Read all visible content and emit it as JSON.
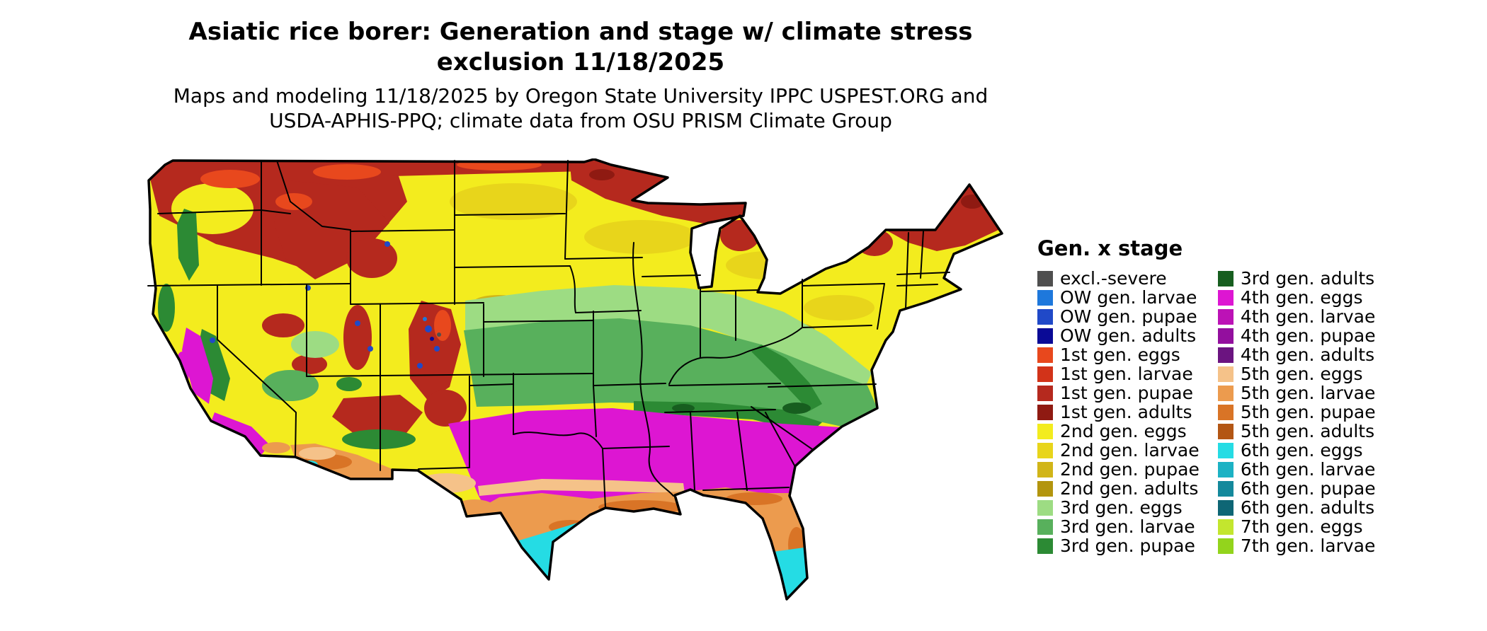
{
  "title": {
    "line1": "Asiatic rice borer: Generation and stage w/ climate stress",
    "line2": "exclusion 11/18/2025"
  },
  "subtitle": {
    "line1": "Maps and modeling 11/18/2025 by Oregon State University IPPC USPEST.ORG and",
    "line2": "USDA-APHIS-PPQ; climate data from OSU PRISM Climate Group"
  },
  "legend": {
    "title": "Gen. x stage",
    "columns": [
      {
        "items": [
          {
            "label": "excl.-severe",
            "color": "#4f4f4f"
          },
          {
            "label": "OW gen. larvae",
            "color": "#1e78dc"
          },
          {
            "label": "OW gen. pupae",
            "color": "#2049c8"
          },
          {
            "label": "OW gen. adults",
            "color": "#0a0a96"
          },
          {
            "label": "1st gen. eggs",
            "color": "#e8481d"
          },
          {
            "label": "1st gen. larvae",
            "color": "#d23319"
          },
          {
            "label": "1st gen. pupae",
            "color": "#b5291e"
          },
          {
            "label": "1st gen. adults",
            "color": "#8f1a12"
          },
          {
            "label": "2nd gen. eggs",
            "color": "#f3ec1e"
          },
          {
            "label": "2nd gen. larvae",
            "color": "#e8d51b"
          },
          {
            "label": "2nd gen. pupae",
            "color": "#d1b518"
          },
          {
            "label": "2nd gen. adults",
            "color": "#b3950e"
          },
          {
            "label": "3rd gen. eggs",
            "color": "#9ddc83"
          },
          {
            "label": "3rd gen. larvae",
            "color": "#58b05c"
          },
          {
            "label": "3rd gen. pupae",
            "color": "#2c8a34"
          }
        ]
      },
      {
        "items": [
          {
            "label": "3rd gen. adults",
            "color": "#175e1f"
          },
          {
            "label": "4th gen. eggs",
            "color": "#dd16d2"
          },
          {
            "label": "4th gen. larvae",
            "color": "#bc12b6"
          },
          {
            "label": "4th gen. pupae",
            "color": "#930f9e"
          },
          {
            "label": "4th gen. adults",
            "color": "#6b1480"
          },
          {
            "label": "5th gen. eggs",
            "color": "#f5c289"
          },
          {
            "label": "5th gen. larvae",
            "color": "#ec9b4e"
          },
          {
            "label": "5th gen. pupae",
            "color": "#d97426"
          },
          {
            "label": "5th gen. adults",
            "color": "#b35614"
          },
          {
            "label": "6th gen. eggs",
            "color": "#25dce4"
          },
          {
            "label": "6th gen. larvae",
            "color": "#1cb2c4"
          },
          {
            "label": "6th gen. pupae",
            "color": "#14899c"
          },
          {
            "label": "6th gen. adults",
            "color": "#0e6675"
          },
          {
            "label": "7th gen. eggs",
            "color": "#c3e62e"
          },
          {
            "label": "7th gen. larvae",
            "color": "#93d41c"
          }
        ]
      }
    ]
  },
  "map": {
    "regions_by_stage": {
      "1st gen. pupae": "Northern border strip, Cascades and Rockies, northern Minnesota/Wisconsin/Michigan, northern New England",
      "2nd gen. eggs": "Dominant yellow: northern plains, Midwest, Northeast",
      "3rd gen. eggs": "Light green band from eastern Colorado/Kansas through Ohio",
      "3rd gen. larvae": "Green band: Missouri, Kentucky, Tennessee, Virginia",
      "3rd gen. pupae": "Sierra Nevada, Cascades, Appalachians, southern edge of Tennessee",
      "4th gen. eggs": "Magenta band across the South: Texas to the Carolinas; California Central Valley and south coast",
      "5th gen. larvae": "Gulf Coast strip, Florida peninsula, southern Arizona",
      "6th gen. eggs": "Southern tip of Texas and South Florida"
    }
  }
}
